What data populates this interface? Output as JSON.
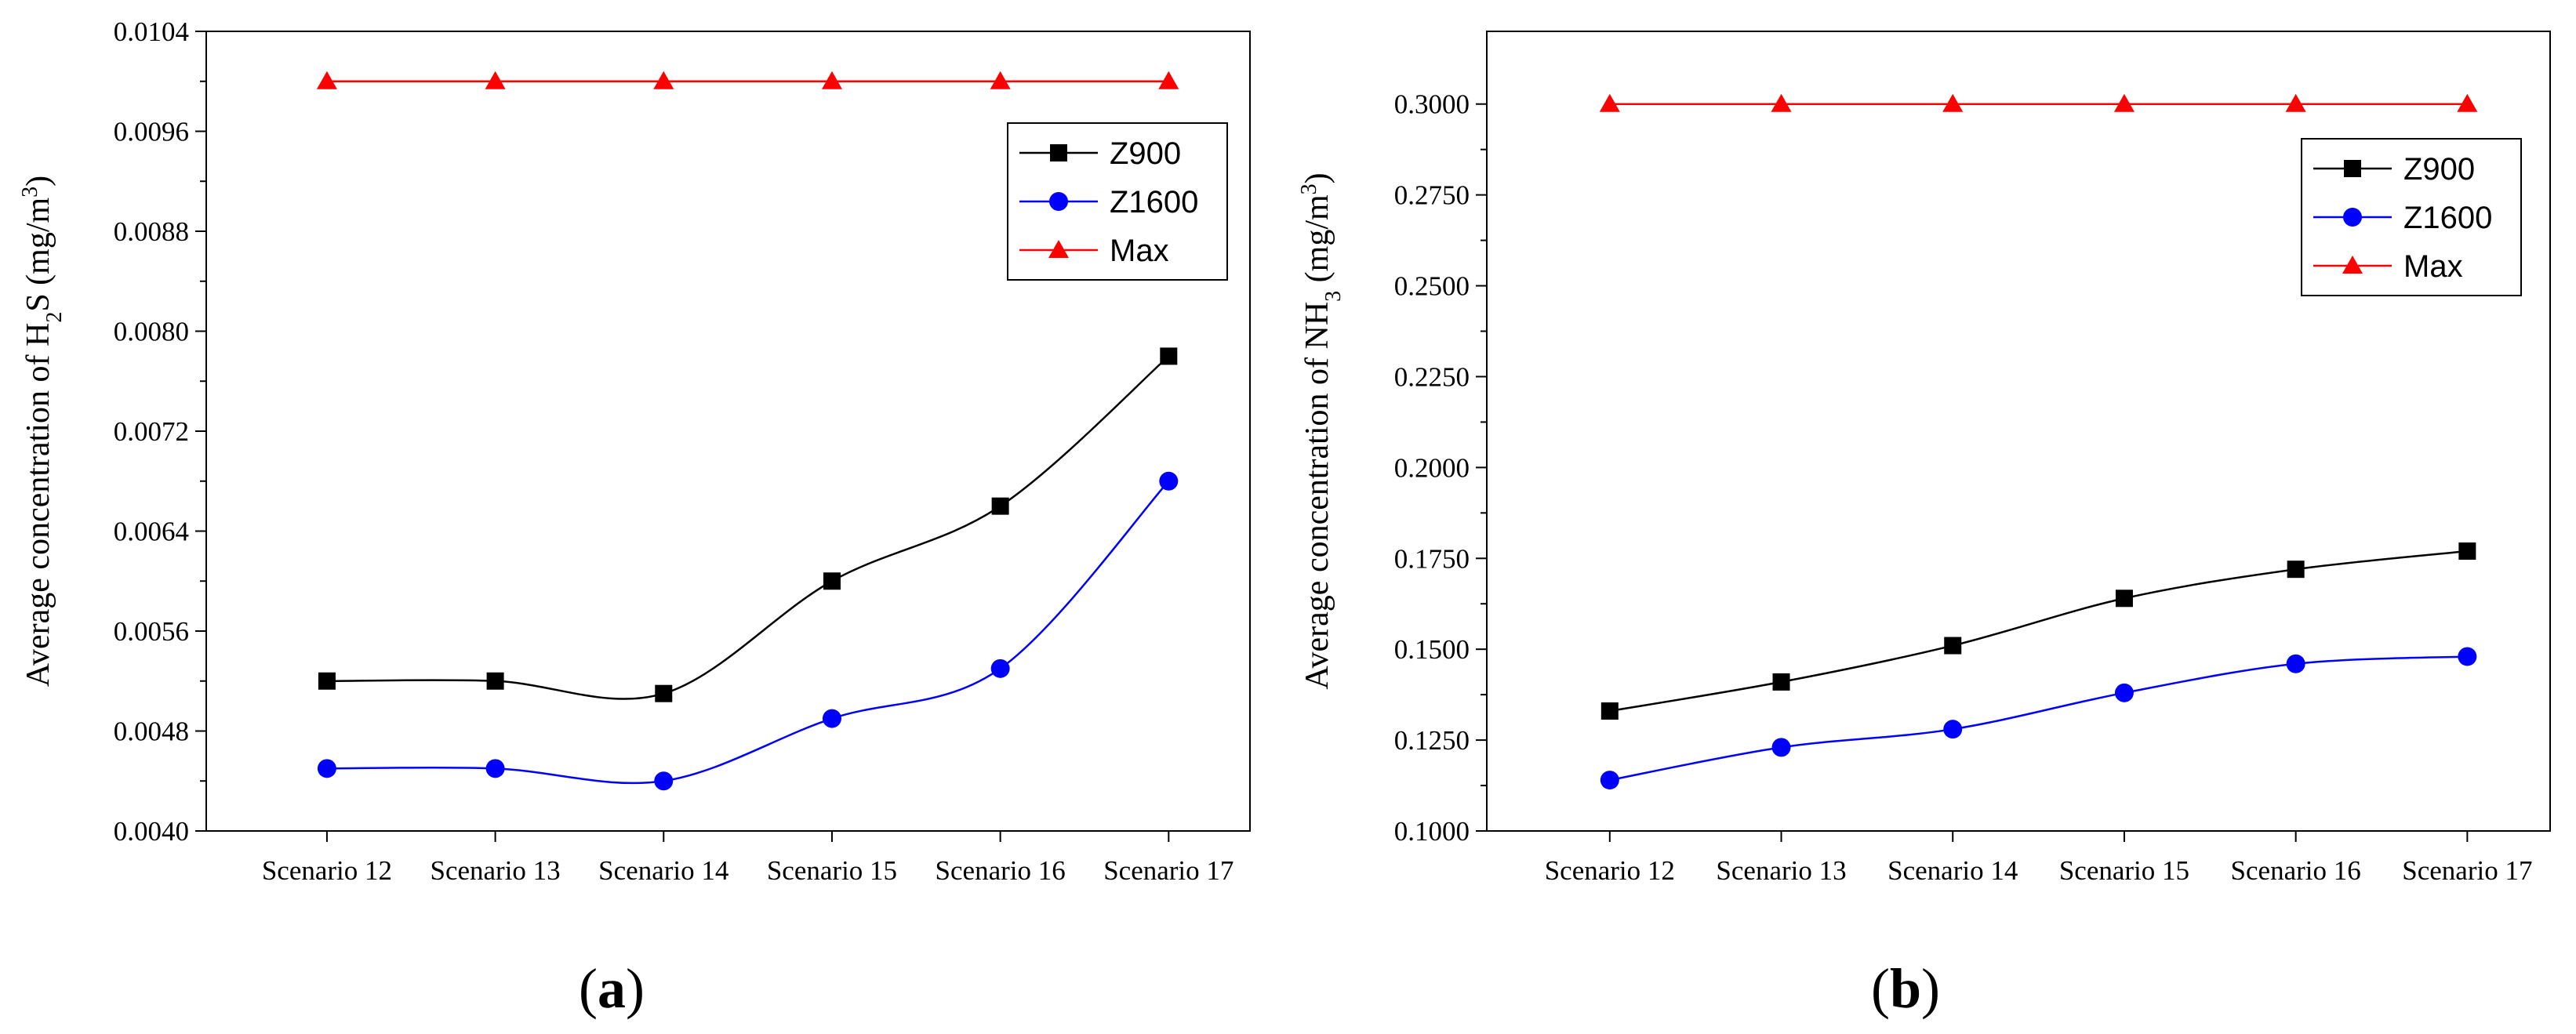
{
  "chart_data": [
    {
      "type": "line",
      "panel_label": "a",
      "title": "",
      "ylabel": "Average concentration of H2S (mg/m3)",
      "ylabel_parts": [
        "Average concentration of H",
        "2",
        "S (mg/m",
        "3",
        ")"
      ],
      "xlabel": "",
      "categories": [
        "Scenario 12",
        "Scenario 13",
        "Scenario 14",
        "Scenario 15",
        "Scenario 16",
        "Scenario 17"
      ],
      "ylim": [
        0.004,
        0.0104
      ],
      "yticks": [
        0.004,
        0.0048,
        0.0056,
        0.0064,
        0.0072,
        0.008,
        0.0088,
        0.0096,
        0.0104
      ],
      "ytick_labels": [
        "0.0040",
        "0.0048",
        "0.0056",
        "0.0064",
        "0.0072",
        "0.0080",
        "0.0088",
        "0.0096",
        "0.0104"
      ],
      "grid": false,
      "legend_position": "top-right",
      "series": [
        {
          "name": "Z900",
          "color": "#000000",
          "marker": "square",
          "values": [
            0.0052,
            0.0052,
            0.0051,
            0.006,
            0.0066,
            0.0078
          ]
        },
        {
          "name": "Z1600",
          "color": "#0000ff",
          "marker": "circle",
          "values": [
            0.0045,
            0.0045,
            0.0044,
            0.0049,
            0.0053,
            0.0068
          ]
        },
        {
          "name": "Max",
          "color": "#ff0000",
          "marker": "triangle",
          "values": [
            0.01,
            0.01,
            0.01,
            0.01,
            0.01,
            0.01
          ]
        }
      ]
    },
    {
      "type": "line",
      "panel_label": "b",
      "title": "",
      "ylabel": "Average concentration of NH3 (mg/m3)",
      "ylabel_parts": [
        "Average concentration of NH",
        "3",
        " (mg/m",
        "3",
        ")"
      ],
      "xlabel": "",
      "categories": [
        "Scenario 12",
        "Scenario 13",
        "Scenario 14",
        "Scenario 15",
        "Scenario 16",
        "Scenario 17"
      ],
      "ylim": [
        0.1,
        0.32
      ],
      "yticks": [
        0.1,
        0.125,
        0.15,
        0.175,
        0.2,
        0.225,
        0.25,
        0.275,
        0.3
      ],
      "ytick_labels": [
        "0.1000",
        "0.1250",
        "0.1500",
        "0.1750",
        "0.2000",
        "0.2250",
        "0.2500",
        "0.2750",
        "0.3000"
      ],
      "grid": false,
      "legend_position": "top-right",
      "series": [
        {
          "name": "Z900",
          "color": "#000000",
          "marker": "square",
          "values": [
            0.133,
            0.141,
            0.151,
            0.164,
            0.172,
            0.177
          ]
        },
        {
          "name": "Z1600",
          "color": "#0000ff",
          "marker": "circle",
          "values": [
            0.114,
            0.123,
            0.128,
            0.138,
            0.146,
            0.148
          ]
        },
        {
          "name": "Max",
          "color": "#ff0000",
          "marker": "triangle",
          "values": [
            0.3,
            0.3,
            0.3,
            0.3,
            0.3,
            0.3
          ]
        }
      ]
    }
  ]
}
